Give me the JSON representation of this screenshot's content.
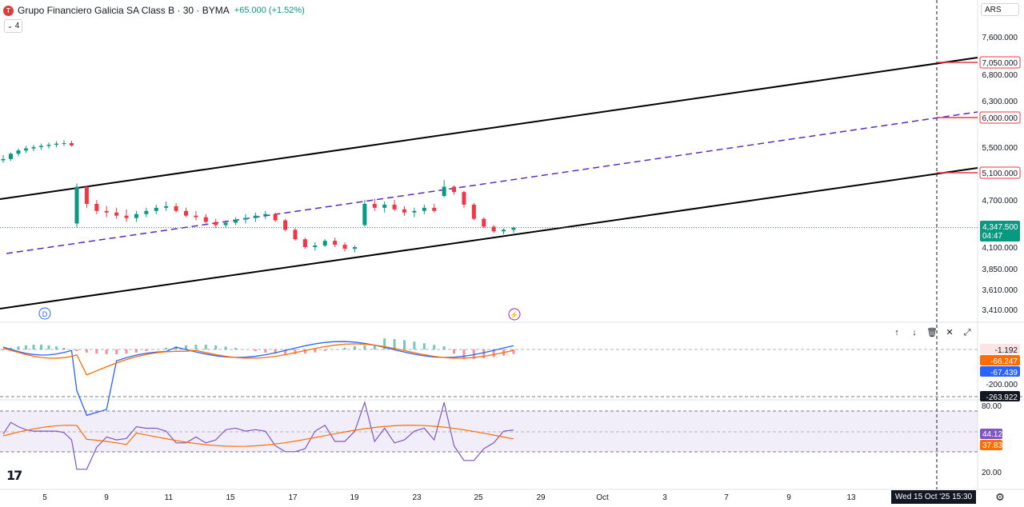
{
  "header": {
    "title": "Grupo Financiero Galicia SA Class B · 30 · BYMA",
    "change": "+65.000 (+1.52%)",
    "logo_letter": "T",
    "indicator_toggle": "4"
  },
  "currency": "ARS",
  "price_axis": {
    "ticks": [
      "7,600.000",
      "6,800.000",
      "6,300.000",
      "5,500.000",
      "4,700.000",
      "4,100.000",
      "3,850.000",
      "3,610.000",
      "3,410.000"
    ],
    "labels": [
      {
        "text": "7,050.000",
        "kind": "line"
      },
      {
        "text": "6,000.000",
        "kind": "line"
      },
      {
        "text": "5,100.000",
        "kind": "line"
      },
      {
        "text": "4,347.500",
        "kind": "last"
      },
      {
        "text": "04:47",
        "kind": "countdown"
      }
    ]
  },
  "macd_axis": {
    "ticks": [
      "-200.000"
    ],
    "labels": [
      {
        "text": "-1.192",
        "kind": "hist"
      },
      {
        "text": "-66.247",
        "kind": "signal"
      },
      {
        "text": "-67.439",
        "kind": "macd"
      },
      {
        "text": "-263.922",
        "kind": "cross"
      }
    ]
  },
  "rsi_axis": {
    "ticks": [
      "80.00",
      "20.00"
    ],
    "labels": [
      {
        "text": "44.12",
        "kind": "rsi"
      },
      {
        "text": "37.83",
        "kind": "ma"
      }
    ]
  },
  "time_axis": {
    "ticks": [
      "5",
      "9",
      "11",
      "15",
      "17",
      "19",
      "23",
      "25",
      "29",
      "Oct",
      "3",
      "7",
      "9",
      "13"
    ],
    "crosshair_label": "Wed 15 Oct '25   15:30"
  },
  "markers": {
    "dividend": "D",
    "flash": "⚡"
  },
  "pane_controls": [
    "↑",
    "↓",
    "🗑",
    "✕",
    "⤢"
  ],
  "colors": {
    "up": "#089981",
    "down": "#f23645",
    "channel": "#000000",
    "midline": "#5b2bbf",
    "macd": "#2962ff",
    "signal": "#ff6d00",
    "rsi": "#7e57c2",
    "rsi_ma": "#ff6d00",
    "label_red": "#f23645",
    "label_green": "#089981"
  },
  "chart_data": {
    "type": "candlestick",
    "series": [
      {
        "name": "price",
        "values": [
          [
            5300,
            5380,
            5260,
            5320
          ],
          [
            5320,
            5420,
            5290,
            5400
          ],
          [
            5400,
            5480,
            5360,
            5450
          ],
          [
            5450,
            5520,
            5410,
            5480
          ],
          [
            5480,
            5540,
            5440,
            5500
          ],
          [
            5500,
            5560,
            5460,
            5520
          ],
          [
            5520,
            5580,
            5480,
            5540
          ],
          [
            5540,
            5600,
            5500,
            5560
          ],
          [
            5560,
            5620,
            5520,
            5570
          ],
          [
            5570,
            5610,
            5510,
            5530
          ],
          [
            4400,
            4950,
            4350,
            4900
          ],
          [
            4900,
            4920,
            4600,
            4650
          ],
          [
            4650,
            4700,
            4520,
            4560
          ],
          [
            4560,
            4620,
            4480,
            4540
          ],
          [
            4540,
            4600,
            4460,
            4500
          ],
          [
            4500,
            4580,
            4420,
            4470
          ],
          [
            4470,
            4560,
            4420,
            4520
          ],
          [
            4520,
            4600,
            4480,
            4560
          ],
          [
            4560,
            4640,
            4520,
            4600
          ],
          [
            4600,
            4680,
            4560,
            4620
          ],
          [
            4620,
            4660,
            4540,
            4560
          ],
          [
            4560,
            4600,
            4480,
            4500
          ],
          [
            4500,
            4560,
            4440,
            4480
          ],
          [
            4480,
            4520,
            4400,
            4420
          ],
          [
            4420,
            4460,
            4340,
            4380
          ],
          [
            4380,
            4440,
            4340,
            4410
          ],
          [
            4410,
            4480,
            4380,
            4450
          ],
          [
            4450,
            4520,
            4400,
            4470
          ],
          [
            4470,
            4540,
            4420,
            4500
          ],
          [
            4500,
            4560,
            4460,
            4520
          ],
          [
            4520,
            4540,
            4420,
            4440
          ],
          [
            4440,
            4460,
            4300,
            4320
          ],
          [
            4320,
            4340,
            4180,
            4200
          ],
          [
            4200,
            4220,
            4080,
            4100
          ],
          [
            4100,
            4160,
            4060,
            4120
          ],
          [
            4120,
            4200,
            4100,
            4180
          ],
          [
            4180,
            4220,
            4100,
            4130
          ],
          [
            4130,
            4160,
            4050,
            4080
          ],
          [
            4080,
            4120,
            4040,
            4100
          ],
          [
            4380,
            4700,
            4360,
            4650
          ],
          [
            4650,
            4720,
            4560,
            4600
          ],
          [
            4600,
            4680,
            4540,
            4640
          ],
          [
            4640,
            4700,
            4560,
            4580
          ],
          [
            4580,
            4620,
            4500,
            4540
          ],
          [
            4540,
            4600,
            4480,
            4560
          ],
          [
            4560,
            4640,
            4520,
            4600
          ],
          [
            4600,
            4650,
            4540,
            4560
          ],
          [
            4760,
            5000,
            4740,
            4900
          ],
          [
            4900,
            4920,
            4780,
            4820
          ],
          [
            4820,
            4840,
            4600,
            4640
          ],
          [
            4640,
            4660,
            4440,
            4460
          ],
          [
            4460,
            4480,
            4340,
            4360
          ],
          [
            4360,
            4380,
            4280,
            4300
          ],
          [
            4300,
            4340,
            4260,
            4320
          ],
          [
            4320,
            4360,
            4280,
            4347.5
          ]
        ]
      }
    ],
    "x": [
      "5",
      "9",
      "11",
      "15",
      "17",
      "19",
      "23",
      "25",
      "29",
      "Oct",
      "3",
      "7",
      "9",
      "13"
    ],
    "last_price": 4347.5,
    "channel_levels_at_cursor": [
      7050,
      6000,
      5100
    ],
    "macd": {
      "macd": -67.439,
      "signal": -66.247,
      "histogram": -1.192
    },
    "rsi": {
      "value": 44.12,
      "ma": 37.83,
      "upper": 80,
      "lower": 20
    }
  }
}
